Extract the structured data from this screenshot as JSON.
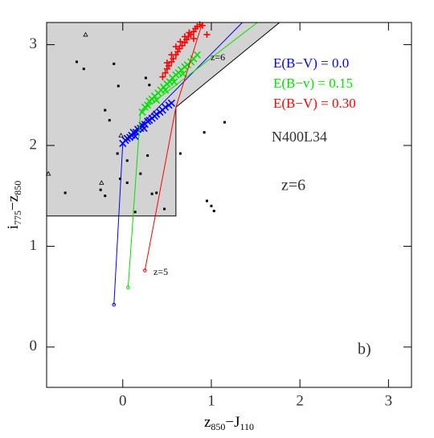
{
  "chart_data": {
    "type": "scatter",
    "xlabel": [
      "z",
      "850",
      "−J",
      "110"
    ],
    "ylabel": [
      "i",
      "775",
      "−z",
      "850"
    ],
    "xlim": [
      -0.86,
      3.26
    ],
    "ylim": [
      -0.4,
      3.22
    ],
    "xticks": [
      0,
      1,
      2,
      3
    ],
    "yticks": [
      0,
      1,
      2,
      3
    ],
    "region": {
      "color": "#d3d3d3",
      "x": [
        -0.86,
        0.6,
        0.6,
        1.77,
        -0.86
      ],
      "y": [
        1.3,
        1.3,
        2.38,
        3.22,
        3.22
      ]
    },
    "series": [
      {
        "name": "E(B−V) = 0.0",
        "color": "#0000ff",
        "marker": "x",
        "track": {
          "x": [
            -0.1,
            0.0,
            1.35
          ],
          "y": [
            0.42,
            2.02,
            3.22
          ]
        },
        "x": [
          0.0,
          0.03,
          0.05,
          0.08,
          0.1,
          0.12,
          0.15,
          0.17,
          0.2,
          0.22,
          0.25,
          0.28,
          0.3,
          0.33,
          0.36,
          0.38,
          0.42,
          0.45,
          0.48,
          0.52,
          0.55,
          0.14,
          0.24
        ],
        "y": [
          2.02,
          2.05,
          2.07,
          2.08,
          2.1,
          2.13,
          2.13,
          2.16,
          2.17,
          2.2,
          2.21,
          2.24,
          2.25,
          2.27,
          2.29,
          2.31,
          2.33,
          2.35,
          2.38,
          2.4,
          2.42,
          2.09,
          2.17
        ]
      },
      {
        "name": "E(B−v) = 0.15",
        "color": "#00e000",
        "marker": "x",
        "track": {
          "x": [
            0.06,
            0.2,
            1.52
          ],
          "y": [
            0.59,
            2.33,
            3.22
          ]
        },
        "x": [
          0.22,
          0.25,
          0.28,
          0.3,
          0.33,
          0.36,
          0.4,
          0.43,
          0.46,
          0.5,
          0.53,
          0.56,
          0.6,
          0.63,
          0.66,
          0.7,
          0.73,
          0.77,
          0.8,
          0.84,
          0.38,
          0.48,
          0.58,
          0.68
        ],
        "y": [
          2.33,
          2.38,
          2.4,
          2.44,
          2.46,
          2.49,
          2.52,
          2.55,
          2.58,
          2.61,
          2.63,
          2.67,
          2.7,
          2.72,
          2.75,
          2.78,
          2.8,
          2.83,
          2.86,
          2.9,
          2.45,
          2.55,
          2.63,
          2.71
        ]
      },
      {
        "name": "E(B−V) = 0.30",
        "color": "#ff0000",
        "marker": "+",
        "track": {
          "x": [
            0.25,
            0.6,
            0.9
          ],
          "y": [
            0.76,
            2.38,
            3.22
          ]
        },
        "x": [
          0.45,
          0.48,
          0.5,
          0.52,
          0.55,
          0.57,
          0.6,
          0.62,
          0.64,
          0.67,
          0.7,
          0.72,
          0.74,
          0.77,
          0.8,
          0.82,
          0.84,
          0.87,
          0.9,
          0.95,
          0.5,
          0.55,
          0.6,
          0.65,
          0.7,
          0.75,
          0.8
        ],
        "y": [
          2.68,
          2.72,
          2.76,
          2.79,
          2.83,
          2.86,
          2.9,
          2.93,
          2.96,
          2.99,
          3.02,
          3.05,
          3.08,
          3.1,
          3.13,
          3.16,
          3.18,
          3.2,
          3.19,
          3.1,
          2.82,
          2.9,
          2.98,
          3.03,
          3.08,
          3.12,
          3.06
        ]
      }
    ],
    "galaxies": {
      "color": "#000000",
      "x": [
        -0.52,
        -0.44,
        -0.1,
        -0.05,
        0.26,
        0.3,
        -0.2,
        -0.15,
        -0.06,
        0.05,
        0.28,
        0.2,
        -0.03,
        0.05,
        0.33,
        0.38,
        0.14,
        -0.25,
        -0.2,
        -0.65,
        0.47,
        0.65,
        0.92,
        1.15,
        0.95,
        1.0,
        1.03
      ],
      "y": [
        2.83,
        2.76,
        2.81,
        2.59,
        2.67,
        2.6,
        2.35,
        2.25,
        1.92,
        1.85,
        1.9,
        1.72,
        1.67,
        1.63,
        1.52,
        1.53,
        1.34,
        1.56,
        1.5,
        1.53,
        1.37,
        1.92,
        2.13,
        2.23,
        1.45,
        1.4,
        1.35
      ]
    },
    "triangles": {
      "color": "#000000",
      "x": [
        -0.42,
        -0.24,
        -0.02,
        -0.84
      ],
      "y": [
        3.1,
        1.63,
        2.1,
        1.72
      ]
    },
    "z6_label": "z=6",
    "z5_label": "z=5",
    "model": "N400L34",
    "redshift": "z=6",
    "panel": "b)"
  }
}
